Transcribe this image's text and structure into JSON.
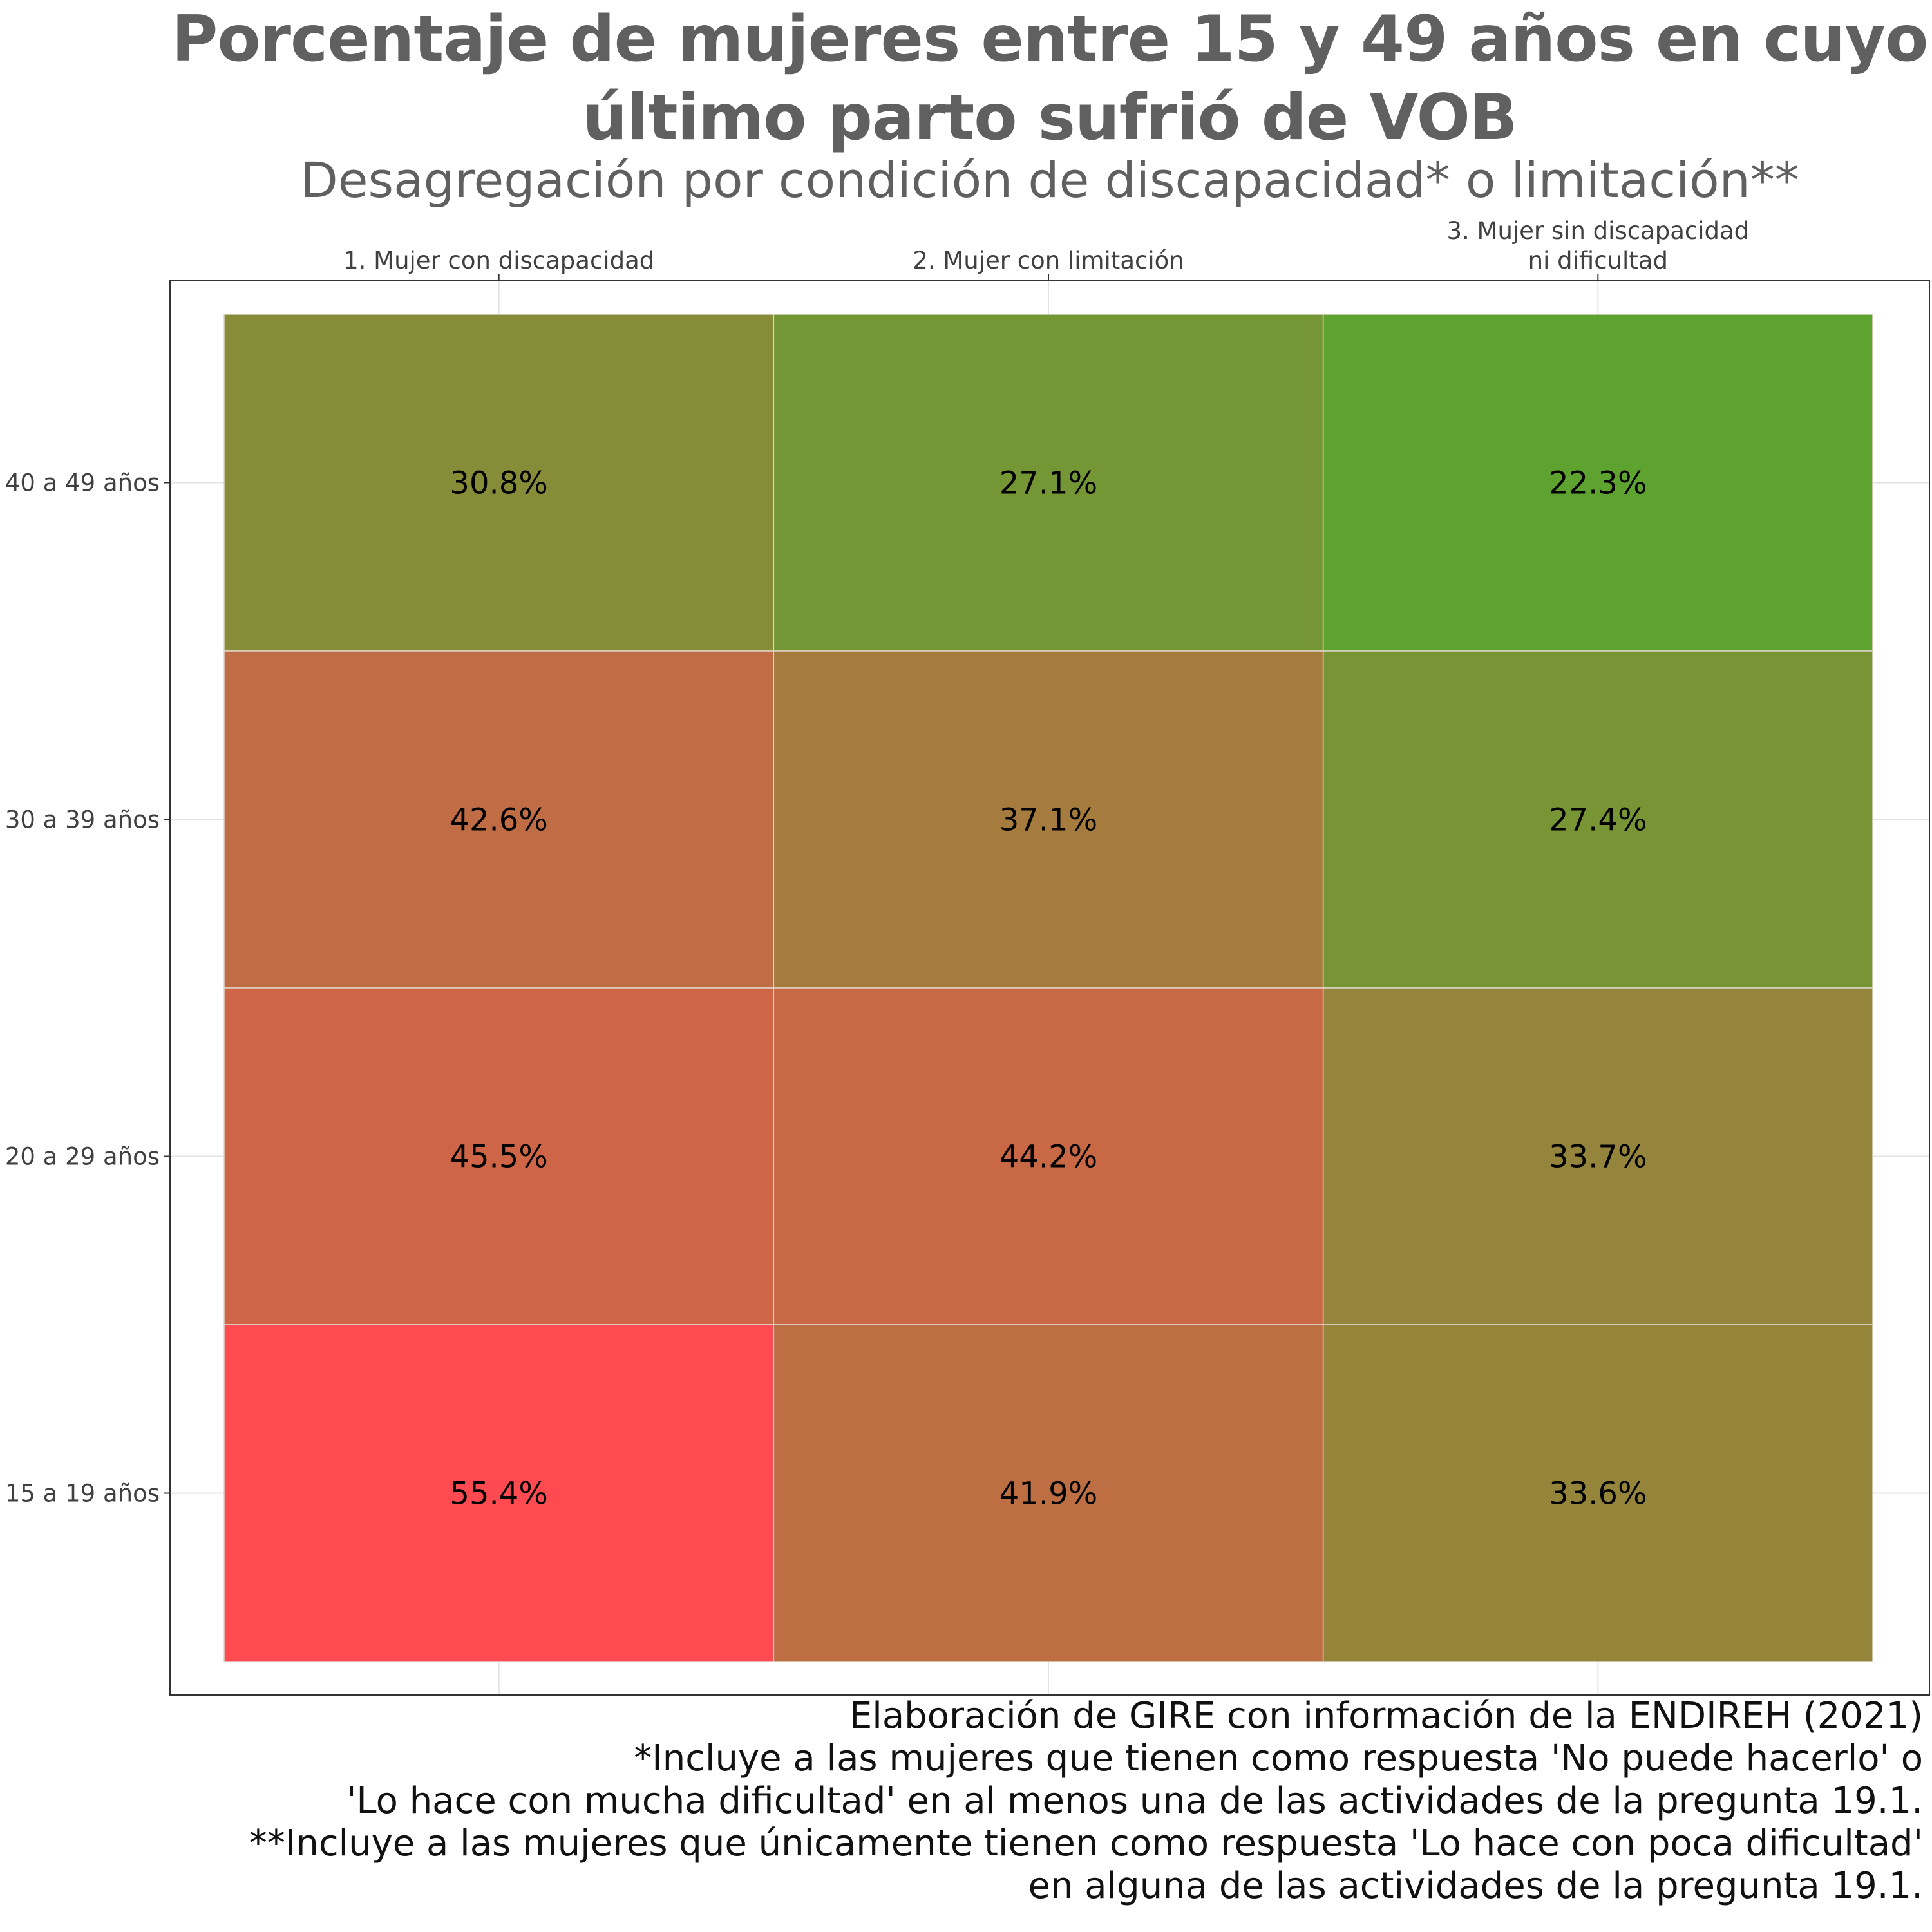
{
  "chart_data": {
    "type": "heatmap",
    "title": "Porcentaje de mujeres entre 15 y 49 años en cuyo último parto sufrió de VOB",
    "subtitle": "Desagregación por condición de discapacidad* o limitación**",
    "x_categories": [
      [
        "1. Mujer con discapacidad"
      ],
      [
        "2. Mujer con limitación"
      ],
      [
        "3. Mujer sin discapacidad",
        "ni dificultad"
      ]
    ],
    "y_categories": [
      "40 a 49 años",
      "30 a 39 años",
      "20 a 29 años",
      "15 a 19 años"
    ],
    "values": [
      [
        30.8,
        27.1,
        22.3
      ],
      [
        42.6,
        37.1,
        27.4
      ],
      [
        45.5,
        44.2,
        33.7
      ],
      [
        55.4,
        41.9,
        33.6
      ]
    ],
    "labels": [
      [
        "30.8%",
        "27.1%",
        "22.3%"
      ],
      [
        "42.6%",
        "37.1%",
        "27.4%"
      ],
      [
        "45.5%",
        "44.2%",
        "33.7%"
      ],
      [
        "55.4%",
        "41.9%",
        "33.6%"
      ]
    ],
    "color_scale": {
      "low": "#5ea330",
      "high": "#fe4a50"
    },
    "x_axis_position": "top",
    "grid": true,
    "legend": "none"
  },
  "caption_lines": [
    "Elaboración de GIRE con información de la ENDIREH (2021)",
    "*Incluye a las mujeres que tienen como respuesta 'No puede hacerlo' o",
    "'Lo hace con mucha dificultad' en al menos una de las actividades de la pregunta 19.1.",
    "**Incluye a las mujeres que únicamente tienen como respuesta 'Lo hace con poca dificultad'",
    "en alguna de las actividades de la pregunta 19.1."
  ]
}
